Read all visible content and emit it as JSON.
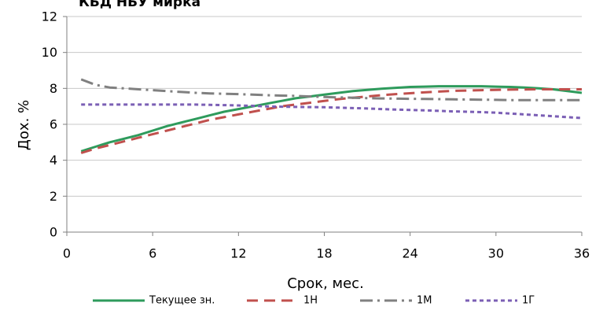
{
  "chart_data": {
    "type": "line",
    "title": "КБД НБУ мирка",
    "xlabel": "Срок, мес.",
    "ylabel": "Дох. %",
    "xlim": [
      0,
      36
    ],
    "ylim": [
      0,
      12
    ],
    "xticks": [
      0,
      6,
      12,
      18,
      24,
      30,
      36
    ],
    "yticks": [
      0,
      2,
      4,
      6,
      8,
      10,
      12
    ],
    "grid": "horizontal",
    "legend_position": "bottom",
    "series": [
      {
        "name": "Текущее зн.",
        "color": "#2e9b5c",
        "style": "solid",
        "x": [
          1,
          2,
          3,
          4,
          5,
          6,
          7,
          8,
          9,
          10,
          11,
          12,
          13,
          14,
          15,
          16,
          17,
          18,
          19,
          20,
          21,
          22,
          23,
          24,
          25,
          26,
          27,
          28,
          29,
          30,
          31,
          32,
          33,
          34,
          35,
          36
        ],
        "values": [
          4.5,
          4.75,
          5.0,
          5.2,
          5.4,
          5.65,
          5.9,
          6.1,
          6.3,
          6.5,
          6.7,
          6.85,
          7.0,
          7.15,
          7.3,
          7.45,
          7.55,
          7.65,
          7.75,
          7.85,
          7.92,
          7.98,
          8.03,
          8.08,
          8.1,
          8.12,
          8.12,
          8.12,
          8.12,
          8.1,
          8.08,
          8.05,
          8.0,
          7.95,
          7.85,
          7.75
        ]
      },
      {
        "name": "1Н",
        "color": "#c0504d",
        "style": "dash",
        "x": [
          1,
          2,
          3,
          4,
          5,
          6,
          7,
          8,
          9,
          10,
          11,
          12,
          13,
          14,
          15,
          16,
          17,
          18,
          19,
          20,
          21,
          22,
          23,
          24,
          25,
          26,
          27,
          28,
          29,
          30,
          31,
          32,
          33,
          34,
          35,
          36
        ],
        "values": [
          4.4,
          4.65,
          4.85,
          5.05,
          5.25,
          5.45,
          5.65,
          5.85,
          6.05,
          6.25,
          6.4,
          6.55,
          6.7,
          6.85,
          7.0,
          7.1,
          7.2,
          7.3,
          7.4,
          7.48,
          7.55,
          7.62,
          7.68,
          7.73,
          7.78,
          7.82,
          7.86,
          7.88,
          7.9,
          7.92,
          7.93,
          7.94,
          7.95,
          7.95,
          7.95,
          7.95
        ]
      },
      {
        "name": "1М",
        "color": "#808080",
        "style": "dashdot",
        "x": [
          1,
          2,
          3,
          4,
          5,
          6,
          7,
          8,
          9,
          10,
          11,
          12,
          13,
          14,
          15,
          16,
          17,
          18,
          19,
          20,
          21,
          22,
          23,
          24,
          25,
          26,
          27,
          28,
          29,
          30,
          31,
          32,
          33,
          34,
          35,
          36
        ],
        "values": [
          8.5,
          8.2,
          8.05,
          8.0,
          7.95,
          7.9,
          7.85,
          7.8,
          7.75,
          7.72,
          7.7,
          7.68,
          7.65,
          7.62,
          7.6,
          7.58,
          7.55,
          7.52,
          7.5,
          7.48,
          7.46,
          7.44,
          7.43,
          7.42,
          7.41,
          7.4,
          7.39,
          7.38,
          7.37,
          7.36,
          7.35,
          7.35,
          7.35,
          7.35,
          7.35,
          7.35
        ]
      },
      {
        "name": "1Г",
        "color": "#7b5fb5",
        "style": "dot",
        "x": [
          1,
          2,
          3,
          4,
          5,
          6,
          7,
          8,
          9,
          10,
          11,
          12,
          13,
          14,
          15,
          16,
          17,
          18,
          19,
          20,
          21,
          22,
          23,
          24,
          25,
          26,
          27,
          28,
          29,
          30,
          31,
          32,
          33,
          34,
          35,
          36
        ],
        "values": [
          7.1,
          7.1,
          7.1,
          7.1,
          7.1,
          7.1,
          7.1,
          7.1,
          7.1,
          7.08,
          7.07,
          7.05,
          7.03,
          7.0,
          6.98,
          6.97,
          6.96,
          6.95,
          6.93,
          6.9,
          6.88,
          6.85,
          6.82,
          6.8,
          6.78,
          6.75,
          6.72,
          6.7,
          6.68,
          6.65,
          6.6,
          6.55,
          6.5,
          6.45,
          6.4,
          6.35
        ]
      }
    ]
  }
}
